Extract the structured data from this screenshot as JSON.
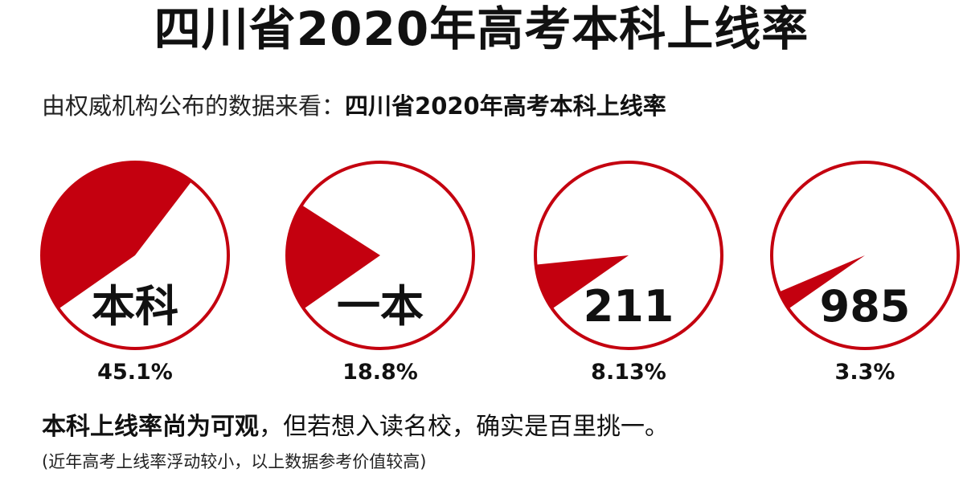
{
  "header": {
    "title": "四川省2020年高考本科上线率"
  },
  "intro": {
    "prefix": "由权威机构公布的数据来看：",
    "highlight": "四川省2020年高考本科上线率"
  },
  "chart_data": {
    "type": "pie",
    "title": "四川省2020年高考本科上线率",
    "slices": [
      {
        "label": "本科",
        "percent": 45.1,
        "percent_text": "45.1%"
      },
      {
        "label": "一本",
        "percent": 18.8,
        "percent_text": "18.8%"
      },
      {
        "label": "211",
        "percent": 8.13,
        "percent_text": "8.13%"
      },
      {
        "label": "985",
        "percent": 3.3,
        "percent_text": "3.3%"
      }
    ],
    "colors": {
      "fill": "#c4000f",
      "ring": "#c4000f",
      "background": "#ffffff"
    }
  },
  "summary": {
    "bold": "本科上线率尚为可观",
    "rest": "，但若想入读名校，确实是百里挑一。"
  },
  "note": {
    "text": "(近年高考上线率浮动较小，以上数据参考价值较高)"
  }
}
